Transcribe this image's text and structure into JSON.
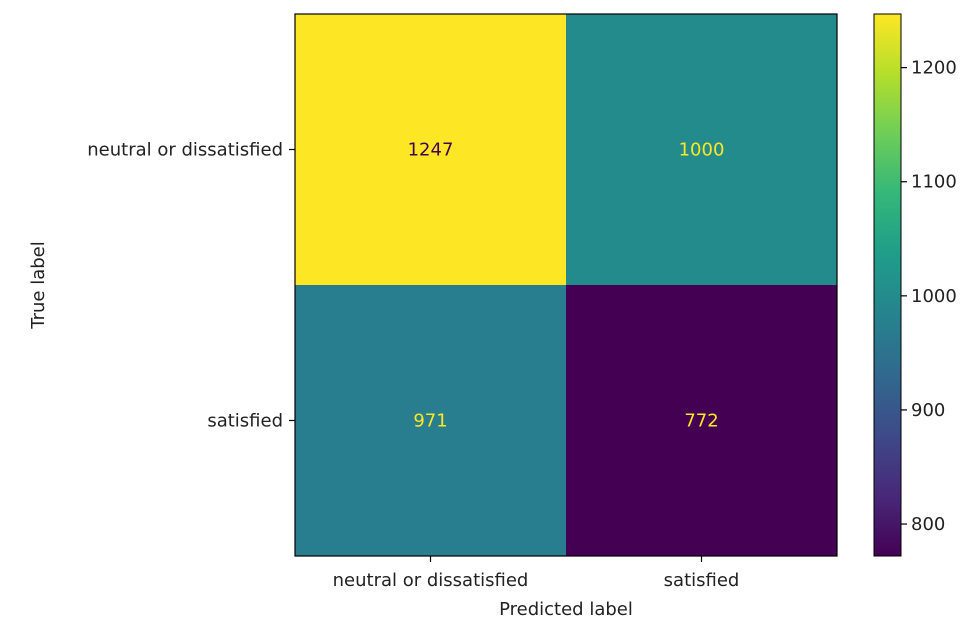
{
  "chart_data": {
    "type": "heatmap",
    "title": "",
    "xlabel": "Predicted label",
    "ylabel": "True label",
    "x_categories": [
      "neutral or dissatisfied",
      "satisfied"
    ],
    "y_categories": [
      "neutral or dissatisfied",
      "satisfied"
    ],
    "values": [
      [
        1247,
        1000
      ],
      [
        971,
        772
      ]
    ],
    "colormap": "viridis",
    "colorbar": {
      "range": [
        772,
        1247
      ],
      "ticks": [
        800,
        900,
        1000,
        1100,
        1200
      ]
    },
    "grid": false
  }
}
